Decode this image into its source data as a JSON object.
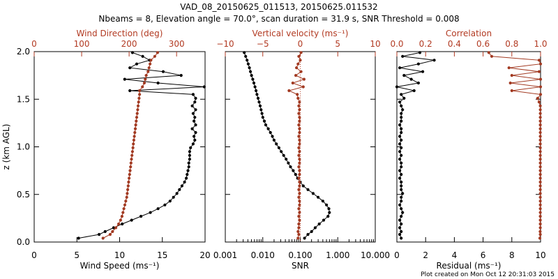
{
  "title_line1": "VAD_08_20150625_011513, 20150625.011532",
  "title_line2": "Nbeams = 8, Elevation angle = 70.0°, scan duration = 31.9 s, SNR Threshold = 0.008",
  "footer": "Plot created on Mon Oct 12 20:31:03 2015",
  "colors": {
    "primary": "#000000",
    "secondary": "#b23a22",
    "marker_red": "#a23a22"
  },
  "chart_data": [
    {
      "type": "line",
      "ylabel": "z (km AGL)",
      "ylim": [
        0.0,
        2.0
      ],
      "yticks": [
        "0.0",
        "0.5",
        "1.0",
        "1.5",
        "2.0"
      ],
      "bottom_axis": {
        "label": "Wind Speed (ms⁻¹)",
        "range": [
          0,
          20
        ],
        "ticks": [
          "0",
          "5",
          "10",
          "15",
          "20"
        ]
      },
      "top_axis": {
        "label": "Wind Direction (deg)",
        "range": [
          0,
          360
        ],
        "ticks": [
          "0",
          "100",
          "200",
          "300"
        ],
        "tick_values": [
          0,
          100,
          200,
          300
        ]
      },
      "series": [
        {
          "axis": "bottom",
          "color": "black",
          "z": [
            0.04,
            0.08,
            0.11,
            0.15,
            0.19,
            0.23,
            0.27,
            0.31,
            0.35,
            0.39,
            0.43,
            0.47,
            0.51,
            0.55,
            0.59,
            0.63,
            0.67,
            0.71,
            0.75,
            0.79,
            0.83,
            0.87,
            0.91,
            0.95,
            0.99,
            1.03,
            1.07,
            1.11,
            1.15,
            1.19,
            1.23,
            1.27,
            1.31,
            1.35,
            1.39,
            1.43,
            1.47,
            1.51,
            1.55,
            1.59,
            1.63,
            1.67,
            1.71,
            1.75,
            1.79,
            1.83,
            1.87,
            1.91,
            1.95,
            1.99
          ],
          "values": [
            5.2,
            7.6,
            8.3,
            9.3,
            10.3,
            11.4,
            12.5,
            13.6,
            14.5,
            15.3,
            15.9,
            16.3,
            16.7,
            17.0,
            17.3,
            17.6,
            17.8,
            17.9,
            18.0,
            18.1,
            18.1,
            18.2,
            18.2,
            18.2,
            18.3,
            18.6,
            18.8,
            18.7,
            18.9,
            18.5,
            18.9,
            18.7,
            18.8,
            18.6,
            18.9,
            18.5,
            18.8,
            18.9,
            18.6,
            11.2,
            19.9,
            14.5,
            10.6,
            17.2,
            15.1,
            11.2,
            12.0,
            13.5,
            12.7,
            11.5
          ]
        },
        {
          "axis": "top",
          "color": "red",
          "z": [
            0.04,
            0.08,
            0.11,
            0.15,
            0.19,
            0.23,
            0.27,
            0.31,
            0.35,
            0.39,
            0.43,
            0.47,
            0.51,
            0.55,
            0.59,
            0.63,
            0.67,
            0.71,
            0.75,
            0.79,
            0.83,
            0.87,
            0.91,
            0.95,
            0.99,
            1.03,
            1.07,
            1.11,
            1.15,
            1.19,
            1.23,
            1.27,
            1.31,
            1.35,
            1.39,
            1.43,
            1.47,
            1.51,
            1.55,
            1.59,
            1.63,
            1.67,
            1.71,
            1.75,
            1.79,
            1.83,
            1.87,
            1.91,
            1.95,
            1.99
          ],
          "values": [
            145,
            160,
            165,
            172,
            178,
            182,
            185,
            187,
            189,
            191,
            193,
            195,
            196,
            197,
            198,
            199,
            200,
            201,
            202,
            203,
            204,
            205,
            206,
            207,
            208,
            209,
            210,
            211,
            212,
            213,
            214,
            215,
            216,
            217,
            218,
            219,
            220,
            221,
            222,
            222,
            228,
            232,
            234,
            236,
            240,
            242,
            244,
            246,
            254,
            260
          ]
        }
      ]
    },
    {
      "type": "line",
      "ylim": [
        0.0,
        2.0
      ],
      "bottom_axis": {
        "label": "SNR",
        "scale": "log",
        "range": [
          0.001,
          10.0
        ],
        "ticks": [
          "0.001",
          "0.010",
          "0.100",
          "1.000",
          "10.000"
        ],
        "tick_values": [
          0.001,
          0.01,
          0.1,
          1.0,
          10.0
        ]
      },
      "top_axis": {
        "label": "Vertical velocity (ms⁻¹)",
        "range": [
          -10,
          10
        ],
        "ticks": [
          "−10",
          "−5",
          "0",
          "5",
          "10"
        ],
        "tick_values": [
          -10,
          -5,
          0,
          5,
          10
        ]
      },
      "series": [
        {
          "axis": "bottom",
          "color": "black",
          "z": [
            0.04,
            0.08,
            0.11,
            0.15,
            0.19,
            0.23,
            0.27,
            0.31,
            0.35,
            0.39,
            0.43,
            0.47,
            0.51,
            0.55,
            0.59,
            0.63,
            0.67,
            0.71,
            0.75,
            0.79,
            0.83,
            0.87,
            0.91,
            0.95,
            0.99,
            1.03,
            1.07,
            1.11,
            1.15,
            1.19,
            1.23,
            1.27,
            1.31,
            1.35,
            1.39,
            1.43,
            1.47,
            1.51,
            1.55,
            1.59,
            1.63,
            1.67,
            1.71,
            1.75,
            1.79,
            1.83,
            1.87,
            1.91,
            1.95,
            1.99
          ],
          "values": [
            0.13,
            0.16,
            0.2,
            0.25,
            0.32,
            0.42,
            0.55,
            0.6,
            0.58,
            0.5,
            0.4,
            0.3,
            0.22,
            0.16,
            0.12,
            0.1,
            0.085,
            0.075,
            0.065,
            0.055,
            0.048,
            0.042,
            0.036,
            0.031,
            0.027,
            0.023,
            0.02,
            0.018,
            0.016,
            0.014,
            0.012,
            0.011,
            0.01,
            0.0095,
            0.009,
            0.0085,
            0.008,
            0.0075,
            0.007,
            0.0066,
            0.0062,
            0.0058,
            0.0054,
            0.005,
            0.0047,
            0.0044,
            0.0041,
            0.0038,
            0.0035,
            0.0032
          ]
        },
        {
          "axis": "top",
          "color": "red",
          "z": [
            0.04,
            0.08,
            0.11,
            0.15,
            0.19,
            0.23,
            0.27,
            0.31,
            0.35,
            0.39,
            0.43,
            0.47,
            0.51,
            0.55,
            0.59,
            0.63,
            0.67,
            0.71,
            0.75,
            0.79,
            0.83,
            0.87,
            0.91,
            0.95,
            0.99,
            1.03,
            1.07,
            1.11,
            1.15,
            1.19,
            1.23,
            1.27,
            1.31,
            1.35,
            1.39,
            1.43,
            1.47,
            1.51,
            1.55,
            1.59,
            1.63,
            1.67,
            1.71,
            1.75,
            1.79,
            1.83,
            1.87,
            1.91,
            1.95,
            1.99
          ],
          "values": [
            -0.3,
            -0.2,
            -0.3,
            -0.2,
            -0.2,
            -0.1,
            -0.2,
            -0.1,
            -0.2,
            -0.1,
            -0.1,
            -0.2,
            -0.1,
            -0.2,
            -0.1,
            -0.1,
            -0.2,
            -0.1,
            -0.1,
            -0.2,
            -0.1,
            -0.1,
            -0.2,
            -0.1,
            -0.2,
            -0.1,
            -0.1,
            -0.2,
            -0.1,
            -0.1,
            -0.2,
            -0.1,
            -0.1,
            -0.2,
            -0.1,
            -0.2,
            -0.1,
            -0.3,
            -0.4,
            -1.5,
            0.4,
            -1.0,
            0.5,
            -0.6,
            0.1,
            -0.5,
            -0.3,
            0.0,
            -0.2,
            0.1
          ]
        }
      ]
    },
    {
      "type": "line",
      "ylim": [
        0.0,
        2.0
      ],
      "bottom_axis": {
        "label": "Residual (ms⁻¹)",
        "range": [
          0,
          10
        ],
        "ticks": [
          "0",
          "2",
          "4",
          "6",
          "8",
          "10"
        ],
        "tick_values": [
          0,
          2,
          4,
          6,
          8,
          10
        ]
      },
      "top_axis": {
        "label": "Correlation",
        "range": [
          0.0,
          1.0
        ],
        "ticks": [
          "0.0",
          "0.2",
          "0.4",
          "0.6",
          "0.8",
          "1.0"
        ],
        "tick_values": [
          0.0,
          0.2,
          0.4,
          0.6,
          0.8,
          1.0
        ]
      },
      "series": [
        {
          "axis": "bottom",
          "color": "black",
          "z": [
            0.04,
            0.08,
            0.11,
            0.15,
            0.19,
            0.23,
            0.27,
            0.31,
            0.35,
            0.39,
            0.43,
            0.47,
            0.51,
            0.55,
            0.59,
            0.63,
            0.67,
            0.71,
            0.75,
            0.79,
            0.83,
            0.87,
            0.91,
            0.95,
            0.99,
            1.03,
            1.07,
            1.11,
            1.15,
            1.19,
            1.23,
            1.27,
            1.31,
            1.35,
            1.39,
            1.43,
            1.47,
            1.51,
            1.55,
            1.59,
            1.63,
            1.67,
            1.71,
            1.75,
            1.79,
            1.83,
            1.87,
            1.91,
            1.95,
            1.99
          ],
          "values": [
            0.3,
            0.2,
            0.3,
            0.2,
            0.3,
            0.2,
            0.3,
            0.4,
            0.3,
            0.2,
            0.3,
            0.3,
            0.4,
            0.3,
            0.3,
            0.3,
            0.2,
            0.3,
            0.2,
            0.3,
            0.3,
            0.2,
            0.3,
            0.2,
            0.3,
            0.2,
            0.3,
            0.2,
            0.3,
            0.3,
            0.2,
            0.3,
            0.3,
            0.3,
            0.4,
            0.3,
            0.2,
            0.5,
            0.3,
            1.2,
            0.0,
            1.5,
            1.0,
            0.5,
            1.8,
            0.2,
            1.5,
            2.6,
            0.4,
            1.6
          ]
        },
        {
          "axis": "top",
          "color": "red",
          "z": [
            0.04,
            0.08,
            0.11,
            0.15,
            0.19,
            0.23,
            0.27,
            0.31,
            0.35,
            0.39,
            0.43,
            0.47,
            0.51,
            0.55,
            0.59,
            0.63,
            0.67,
            0.71,
            0.75,
            0.79,
            0.83,
            0.87,
            0.91,
            0.95,
            0.99,
            1.03,
            1.07,
            1.11,
            1.15,
            1.19,
            1.23,
            1.27,
            1.31,
            1.35,
            1.39,
            1.43,
            1.47,
            1.51,
            1.55,
            1.59,
            1.63,
            1.67,
            1.71,
            1.75,
            1.79,
            1.83,
            1.87,
            1.91,
            1.95,
            1.99
          ],
          "values": [
            0.995,
            0.998,
            0.997,
            0.998,
            0.998,
            0.998,
            0.998,
            0.998,
            0.998,
            0.998,
            0.998,
            0.998,
            0.998,
            0.998,
            0.998,
            0.998,
            0.998,
            0.998,
            0.998,
            0.998,
            0.998,
            0.998,
            0.998,
            0.998,
            0.998,
            0.998,
            0.998,
            0.998,
            0.998,
            0.998,
            0.998,
            0.998,
            0.998,
            0.998,
            0.998,
            0.998,
            0.99,
            0.98,
            1.0,
            0.8,
            1.0,
            0.79,
            1.0,
            0.8,
            0.99,
            0.78,
            1.0,
            0.99,
            0.66,
            0.64
          ]
        }
      ]
    }
  ]
}
